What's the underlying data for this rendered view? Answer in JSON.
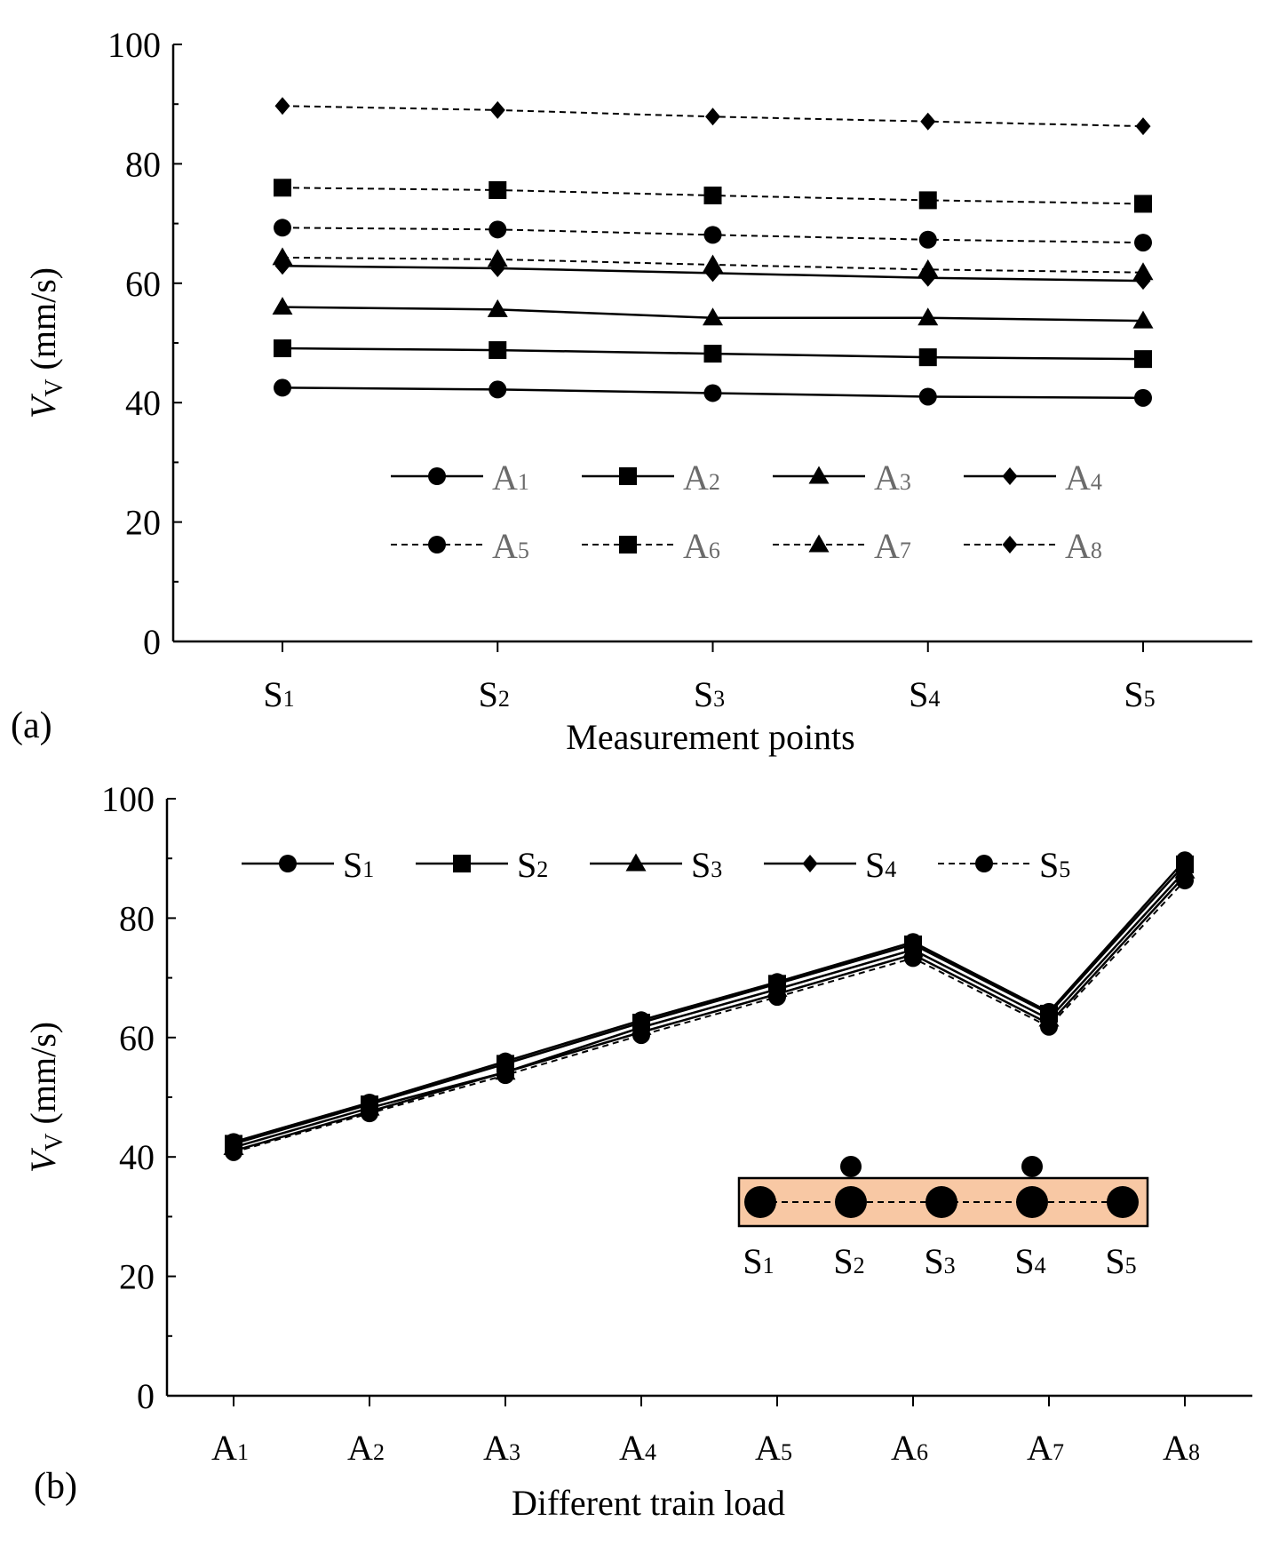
{
  "chart_data": [
    {
      "type": "line",
      "panel_label": "(a)",
      "xlabel": "Measurement points",
      "ylabel": {
        "main": "V",
        "sub": "V",
        "unit": " (mm/s)"
      },
      "ylim": [
        0,
        100
      ],
      "yticks": [
        "0",
        "20",
        "40",
        "60",
        "80",
        "100"
      ],
      "categories": [
        {
          "main": "S",
          "sub": "1"
        },
        {
          "main": "S",
          "sub": "2"
        },
        {
          "main": "S",
          "sub": "3"
        },
        {
          "main": "S",
          "sub": "4"
        },
        {
          "main": "S",
          "sub": "5"
        }
      ],
      "series": [
        {
          "name": {
            "main": "A",
            "sub": "1"
          },
          "marker": "circle",
          "dash": false,
          "values": [
            42.5,
            42.2,
            41.6,
            41.0,
            40.8
          ]
        },
        {
          "name": {
            "main": "A",
            "sub": "2"
          },
          "marker": "square",
          "dash": false,
          "values": [
            49.1,
            48.8,
            48.2,
            47.6,
            47.3
          ]
        },
        {
          "name": {
            "main": "A",
            "sub": "3"
          },
          "marker": "triangle",
          "dash": false,
          "values": [
            56.0,
            55.6,
            54.2,
            54.2,
            53.7
          ]
        },
        {
          "name": {
            "main": "A",
            "sub": "4"
          },
          "marker": "diamond",
          "dash": false,
          "values": [
            62.9,
            62.5,
            61.7,
            60.9,
            60.4
          ]
        },
        {
          "name": {
            "main": "A",
            "sub": "5"
          },
          "marker": "circle",
          "dash": true,
          "values": [
            69.3,
            69.0,
            68.1,
            67.3,
            66.8
          ]
        },
        {
          "name": {
            "main": "A",
            "sub": "6"
          },
          "marker": "square",
          "dash": true,
          "values": [
            76.0,
            75.6,
            74.7,
            73.9,
            73.3
          ]
        },
        {
          "name": {
            "main": "A",
            "sub": "7"
          },
          "marker": "triangle",
          "dash": true,
          "values": [
            64.3,
            64.0,
            63.1,
            62.3,
            61.8
          ]
        },
        {
          "name": {
            "main": "A",
            "sub": "8"
          },
          "marker": "diamond",
          "dash": true,
          "values": [
            89.7,
            89.0,
            87.9,
            87.1,
            86.3
          ]
        }
      ],
      "legend_position": "bottom-center"
    },
    {
      "type": "line",
      "panel_label": "(b)",
      "xlabel": "Different train load",
      "ylabel": {
        "main": "V",
        "sub": "V",
        "unit": " (mm/s)"
      },
      "ylim": [
        0,
        100
      ],
      "yticks": [
        "0",
        "20",
        "40",
        "60",
        "80",
        "100"
      ],
      "categories": [
        {
          "main": "A",
          "sub": "1"
        },
        {
          "main": "A",
          "sub": "2"
        },
        {
          "main": "A",
          "sub": "3"
        },
        {
          "main": "A",
          "sub": "4"
        },
        {
          "main": "A",
          "sub": "5"
        },
        {
          "main": "A",
          "sub": "6"
        },
        {
          "main": "A",
          "sub": "7"
        },
        {
          "main": "A",
          "sub": "8"
        }
      ],
      "series": [
        {
          "name": {
            "main": "S",
            "sub": "1"
          },
          "marker": "circle",
          "dash": false,
          "values": [
            42.5,
            49.1,
            56.0,
            62.9,
            69.3,
            76.0,
            64.3,
            89.7
          ]
        },
        {
          "name": {
            "main": "S",
            "sub": "2"
          },
          "marker": "square",
          "dash": false,
          "values": [
            42.2,
            48.8,
            55.6,
            62.5,
            69.0,
            75.6,
            64.0,
            89.0
          ]
        },
        {
          "name": {
            "main": "S",
            "sub": "3"
          },
          "marker": "triangle",
          "dash": false,
          "values": [
            41.6,
            48.2,
            54.2,
            61.7,
            68.1,
            74.7,
            63.1,
            87.9
          ]
        },
        {
          "name": {
            "main": "S",
            "sub": "4"
          },
          "marker": "diamond",
          "dash": false,
          "values": [
            41.0,
            47.6,
            54.2,
            60.9,
            67.3,
            73.9,
            62.3,
            87.1
          ]
        },
        {
          "name": {
            "main": "S",
            "sub": "5"
          },
          "marker": "circle",
          "dash": true,
          "values": [
            40.8,
            47.3,
            53.7,
            60.4,
            66.8,
            73.3,
            61.8,
            86.3
          ]
        }
      ],
      "legend_position": "top",
      "inset": {
        "fill": "#f8c8a4",
        "labels": [
          {
            "main": "S",
            "sub": "1"
          },
          {
            "main": "S",
            "sub": "2"
          },
          {
            "main": "S",
            "sub": "3"
          },
          {
            "main": "S",
            "sub": "4"
          },
          {
            "main": "S",
            "sub": "5"
          }
        ],
        "raised_points": [
          1,
          3
        ]
      }
    }
  ]
}
